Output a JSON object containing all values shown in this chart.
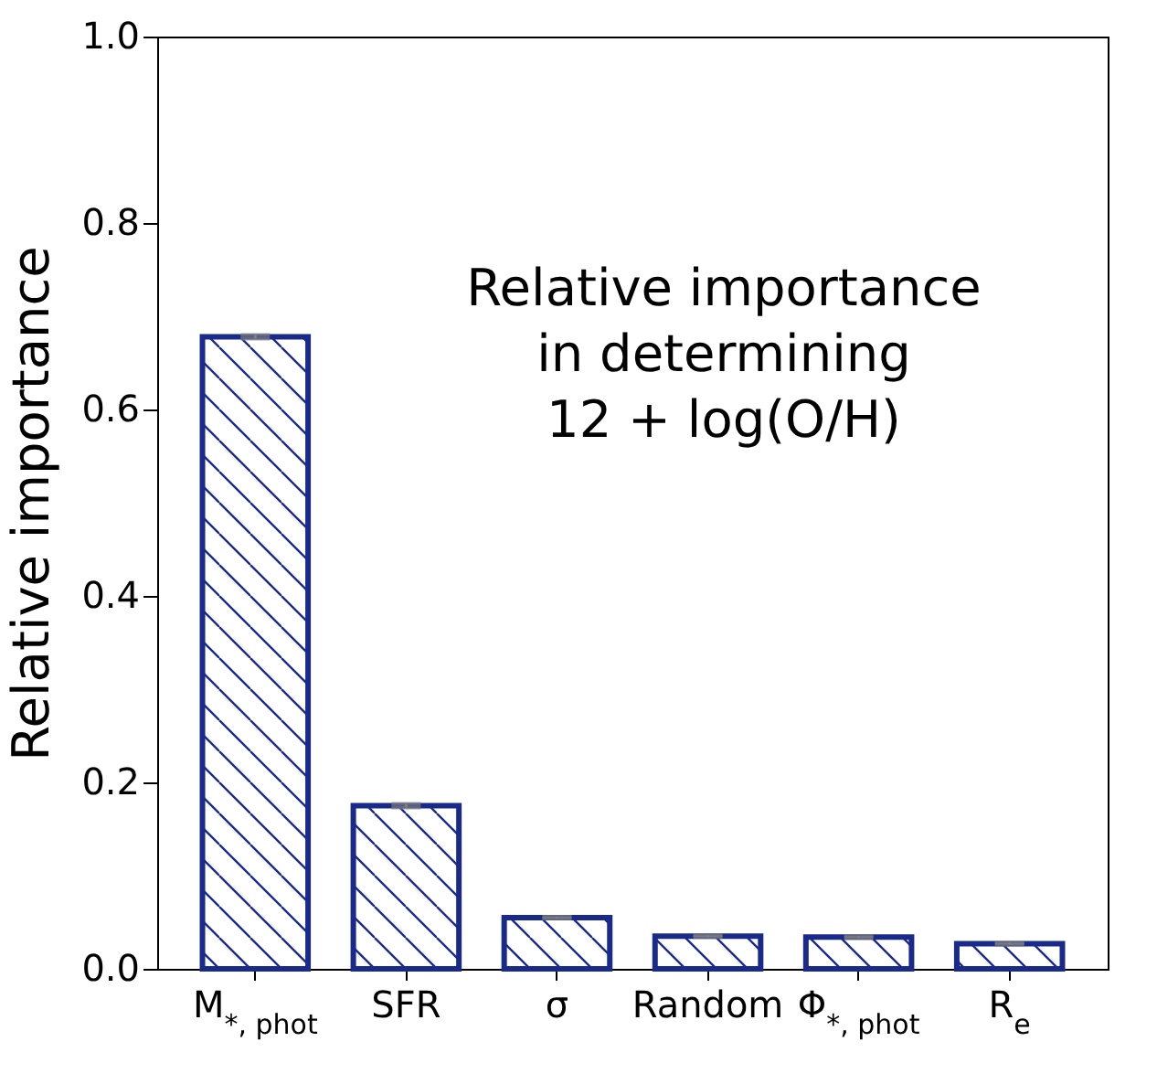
{
  "chart_data": {
    "type": "bar",
    "ylabel": "Relative importance",
    "categories": [
      "M$_{*, phot}$",
      "SFR",
      "σ",
      "Random",
      "Φ$_{*, phot}$",
      "R$_{e}$"
    ],
    "values": [
      0.678,
      0.175,
      0.055,
      0.035,
      0.034,
      0.027
    ],
    "errors": [
      0.002,
      0.002,
      0.001,
      0.001,
      0.001,
      0.001
    ],
    "color": "#1a2a8a",
    "ylim": [
      0,
      1
    ],
    "yticks": [
      {
        "value": 0,
        "label": "0.0"
      },
      {
        "value": 0.2,
        "label": "0.2"
      },
      {
        "value": 0.4,
        "label": "0.4"
      },
      {
        "value": 0.6,
        "label": "0.6"
      },
      {
        "value": 0.8,
        "label": "0.8"
      },
      {
        "value": 1,
        "label": "1.0"
      }
    ],
    "annotations": [
      "Relative importance\nin determining\n12 + log(O/H)"
    ],
    "grid": false
  }
}
